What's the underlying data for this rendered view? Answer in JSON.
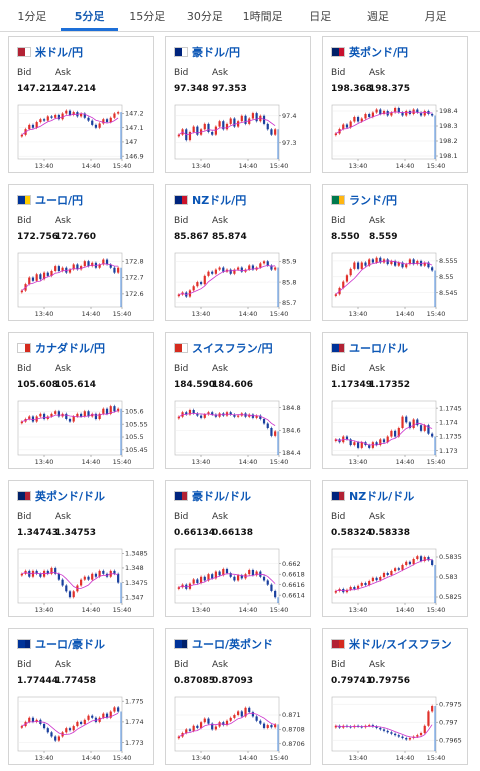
{
  "tabs": [
    {
      "label": "1分足",
      "active": false
    },
    {
      "label": "5分足",
      "active": true
    },
    {
      "label": "15分足",
      "active": false
    },
    {
      "label": "30分足",
      "active": false
    },
    {
      "label": "1時間足",
      "active": false
    },
    {
      "label": "日足",
      "active": false
    },
    {
      "label": "週足",
      "active": false
    },
    {
      "label": "月足",
      "active": false
    }
  ],
  "labels": {
    "bid": "Bid",
    "ask": "Ask"
  },
  "colors": {
    "up": "#e0302a",
    "down": "#1a3f9e",
    "ma": "#cc33cc",
    "accent": "#1d6fd8"
  },
  "cards": [
    {
      "pair": "米ドル/円",
      "bid": "147.212",
      "ask": "147.214",
      "flag": [
        "#b22234",
        "#ffffff"
      ],
      "chart_data": {
        "type": "candlestick",
        "x_ticks": [
          "13:40",
          "14:40",
          "15:40"
        ],
        "y_ticks": [
          "147.2",
          "147.1",
          "147",
          "146.9"
        ],
        "ylim": [
          146.88,
          147.26
        ],
        "series": [
          147.05,
          147.09,
          147.12,
          147.1,
          147.14,
          147.16,
          147.15,
          147.18,
          147.17,
          147.19,
          147.16,
          147.2,
          147.22,
          147.19,
          147.21,
          147.18,
          147.2,
          147.17,
          147.15,
          147.12,
          147.1,
          147.13,
          147.16,
          147.14,
          147.17,
          147.2,
          147.21
        ]
      }
    },
    {
      "pair": "豪ドル/円",
      "bid": "97.348",
      "ask": "97.353",
      "flag": [
        "#00247d",
        "#ffffff"
      ],
      "chart_data": {
        "type": "candlestick",
        "x_ticks": [
          "13:40",
          "14:40",
          "15:40"
        ],
        "y_ticks": [
          "97.4",
          "97.3"
        ],
        "ylim": [
          97.24,
          97.44
        ],
        "series": [
          97.33,
          97.35,
          97.31,
          97.34,
          97.36,
          97.33,
          97.35,
          97.37,
          97.34,
          97.33,
          97.36,
          97.38,
          97.35,
          97.37,
          97.39,
          97.36,
          97.38,
          97.4,
          97.37,
          97.39,
          97.41,
          97.38,
          97.4,
          97.37,
          97.35,
          97.33,
          97.35
        ]
      }
    },
    {
      "pair": "英ポンド/円",
      "bid": "198.368",
      "ask": "198.375",
      "flag": [
        "#012169",
        "#c8102e"
      ],
      "chart_data": {
        "type": "candlestick",
        "x_ticks": [
          "13:40",
          "14:40",
          "15:40"
        ],
        "y_ticks": [
          "198.4",
          "198.3",
          "198.2",
          "198.1"
        ],
        "ylim": [
          198.08,
          198.44
        ],
        "series": [
          198.25,
          198.28,
          198.31,
          198.29,
          198.33,
          198.36,
          198.33,
          198.35,
          198.38,
          198.36,
          198.39,
          198.41,
          198.38,
          198.4,
          198.37,
          198.39,
          198.42,
          198.39,
          198.37,
          198.4,
          198.38,
          198.41,
          198.39,
          198.37,
          198.4,
          198.38,
          198.37
        ]
      }
    },
    {
      "pair": "ユーロ/円",
      "bid": "172.756",
      "ask": "172.760",
      "flag": [
        "#003399",
        "#ffcc00"
      ],
      "chart_data": {
        "type": "candlestick",
        "x_ticks": [
          "13:40",
          "14:40",
          "15:40"
        ],
        "y_ticks": [
          "172.8",
          "172.7",
          "172.6"
        ],
        "ylim": [
          172.52,
          172.85
        ],
        "series": [
          172.62,
          172.66,
          172.7,
          172.68,
          172.72,
          172.69,
          172.73,
          172.71,
          172.74,
          172.77,
          172.74,
          172.76,
          172.73,
          172.75,
          172.78,
          172.75,
          172.77,
          172.8,
          172.77,
          172.79,
          172.76,
          172.78,
          172.81,
          172.78,
          172.76,
          172.73,
          172.76
        ]
      }
    },
    {
      "pair": "NZドル/円",
      "bid": "85.867",
      "ask": "85.874",
      "flag": [
        "#00247d",
        "#cc142b"
      ],
      "chart_data": {
        "type": "candlestick",
        "x_ticks": [
          "13:40",
          "14:40",
          "15:40"
        ],
        "y_ticks": [
          "85.9",
          "85.8",
          "85.7"
        ],
        "ylim": [
          85.68,
          85.94
        ],
        "series": [
          85.74,
          85.75,
          85.73,
          85.76,
          85.78,
          85.8,
          85.79,
          85.83,
          85.85,
          85.84,
          85.86,
          85.87,
          85.85,
          85.86,
          85.84,
          85.86,
          85.87,
          85.85,
          85.86,
          85.88,
          85.86,
          85.87,
          85.89,
          85.9,
          85.88,
          85.86,
          85.87
        ]
      }
    },
    {
      "pair": "ランド/円",
      "bid": "8.550",
      "ask": "8.559",
      "flag": [
        "#007a4d",
        "#ffb612"
      ],
      "chart_data": {
        "type": "candlestick",
        "x_ticks": [
          "13:40",
          "14:40",
          "15:40"
        ],
        "y_ticks": [
          "8.555",
          "8.55",
          "8.545"
        ],
        "ylim": [
          8.5405,
          8.5575
        ],
        "series": [
          8.5445,
          8.5465,
          8.5485,
          8.5505,
          8.5525,
          8.5545,
          8.5525,
          8.5545,
          8.5535,
          8.5555,
          8.5545,
          8.556,
          8.5545,
          8.5555,
          8.554,
          8.555,
          8.5535,
          8.5545,
          8.553,
          8.554,
          8.5555,
          8.554,
          8.555,
          8.5535,
          8.5545,
          8.553,
          8.552
        ]
      }
    },
    {
      "pair": "カナダドル/円",
      "bid": "105.608",
      "ask": "105.614",
      "flag": [
        "#ffffff",
        "#d52b1e"
      ],
      "chart_data": {
        "type": "candlestick",
        "x_ticks": [
          "13:40",
          "14:40",
          "15:40"
        ],
        "y_ticks": [
          "105.6",
          "105.55",
          "105.5",
          "105.45"
        ],
        "ylim": [
          105.43,
          105.64
        ],
        "series": [
          105.56,
          105.57,
          105.58,
          105.56,
          105.58,
          105.59,
          105.57,
          105.58,
          105.59,
          105.6,
          105.58,
          105.59,
          105.57,
          105.56,
          105.58,
          105.59,
          105.58,
          105.6,
          105.58,
          105.59,
          105.57,
          105.59,
          105.61,
          105.59,
          105.62,
          105.6,
          105.61
        ]
      }
    },
    {
      "pair": "スイスフラン/円",
      "bid": "184.590",
      "ask": "184.606",
      "flag": [
        "#d52b1e",
        "#ffffff"
      ],
      "chart_data": {
        "type": "candlestick",
        "x_ticks": [
          "13:40",
          "14:40",
          "15:40"
        ],
        "y_ticks": [
          "184.8",
          "184.6",
          "184.4"
        ],
        "ylim": [
          184.38,
          184.86
        ],
        "series": [
          184.72,
          184.76,
          184.74,
          184.78,
          184.75,
          184.73,
          184.71,
          184.74,
          184.76,
          184.74,
          184.72,
          184.75,
          184.73,
          184.76,
          184.74,
          184.72,
          184.73,
          184.75,
          184.72,
          184.74,
          184.71,
          184.73,
          184.7,
          184.66,
          184.62,
          184.55,
          184.59
        ]
      }
    },
    {
      "pair": "ユーロ/ドル",
      "bid": "1.17349",
      "ask": "1.17352",
      "flag": [
        "#003399",
        "#b22234"
      ],
      "chart_data": {
        "type": "candlestick",
        "x_ticks": [
          "13:40",
          "14:40",
          "15:40"
        ],
        "y_ticks": [
          "1.1745",
          "1.174",
          "1.1735",
          "1.173"
        ],
        "ylim": [
          1.17285,
          1.17475
        ],
        "series": [
          1.1734,
          1.1733,
          1.1735,
          1.1734,
          1.1732,
          1.1733,
          1.1731,
          1.1733,
          1.1732,
          1.1731,
          1.1733,
          1.1732,
          1.1734,
          1.1733,
          1.1735,
          1.1737,
          1.1735,
          1.1738,
          1.1742,
          1.174,
          1.1738,
          1.1741,
          1.1739,
          1.1737,
          1.1739,
          1.1736,
          1.1735
        ]
      }
    },
    {
      "pair": "英ポンド/ドル",
      "bid": "1.34743",
      "ask": "1.34753",
      "flag": [
        "#012169",
        "#b22234"
      ],
      "chart_data": {
        "type": "candlestick",
        "x_ticks": [
          "13:40",
          "14:40",
          "15:40"
        ],
        "y_ticks": [
          "1.3485",
          "1.348",
          "1.3475",
          "1.347"
        ],
        "ylim": [
          1.3468,
          1.34865
        ],
        "series": [
          1.3478,
          1.3479,
          1.3477,
          1.3479,
          1.3478,
          1.3477,
          1.3479,
          1.3478,
          1.348,
          1.3478,
          1.3476,
          1.3474,
          1.3472,
          1.347,
          1.3472,
          1.3474,
          1.3476,
          1.3477,
          1.3476,
          1.3478,
          1.3477,
          1.3479,
          1.3478,
          1.3477,
          1.3479,
          1.3478,
          1.3475
        ]
      }
    },
    {
      "pair": "豪ドル/ドル",
      "bid": "0.66134",
      "ask": "0.66138",
      "flag": [
        "#00247d",
        "#b22234"
      ],
      "chart_data": {
        "type": "candlestick",
        "x_ticks": [
          "13:40",
          "14:40",
          "15:40"
        ],
        "y_ticks": [
          "0.662",
          "0.6618",
          "0.6616",
          "0.6614"
        ],
        "ylim": [
          0.66125,
          0.66228
        ],
        "series": [
          0.66155,
          0.6616,
          0.66152,
          0.66162,
          0.6617,
          0.66163,
          0.66175,
          0.66168,
          0.6618,
          0.66172,
          0.66185,
          0.66178,
          0.6619,
          0.66182,
          0.66175,
          0.66168,
          0.66178,
          0.66172,
          0.6618,
          0.66188,
          0.66178,
          0.66185,
          0.66175,
          0.66168,
          0.6616,
          0.66148,
          0.66136
        ]
      }
    },
    {
      "pair": "NZドル/ドル",
      "bid": "0.58324",
      "ask": "0.58338",
      "flag": [
        "#00247d",
        "#b22234"
      ],
      "chart_data": {
        "type": "candlestick",
        "x_ticks": [
          "13:40",
          "14:40",
          "15:40"
        ],
        "y_ticks": [
          "0.5835",
          "0.583",
          "0.5825"
        ],
        "ylim": [
          0.58235,
          0.5837
        ],
        "series": [
          0.58265,
          0.5827,
          0.58262,
          0.58268,
          0.58275,
          0.5827,
          0.58278,
          0.58285,
          0.5828,
          0.5829,
          0.58298,
          0.58292,
          0.583,
          0.5831,
          0.58305,
          0.58315,
          0.58322,
          0.58318,
          0.5833,
          0.58338,
          0.58332,
          0.58345,
          0.58352,
          0.5834,
          0.5835,
          0.58342,
          0.5833
        ]
      }
    },
    {
      "pair": "ユーロ/豪ドル",
      "bid": "1.77444",
      "ask": "1.77458",
      "flag": [
        "#003399",
        "#00247d"
      ],
      "chart_data": {
        "type": "candlestick",
        "x_ticks": [
          "13:40",
          "14:40",
          "15:40"
        ],
        "y_ticks": [
          "1.775",
          "1.774",
          "1.773"
        ],
        "ylim": [
          1.7726,
          1.7752
        ],
        "series": [
          1.7738,
          1.774,
          1.7742,
          1.774,
          1.7741,
          1.7739,
          1.7737,
          1.7735,
          1.7733,
          1.7731,
          1.7733,
          1.7735,
          1.7737,
          1.7736,
          1.7738,
          1.774,
          1.7739,
          1.7741,
          1.7743,
          1.7742,
          1.774,
          1.7742,
          1.7744,
          1.7742,
          1.7745,
          1.7747,
          1.7745
        ]
      }
    },
    {
      "pair": "ユーロ/英ポンド",
      "bid": "0.87085",
      "ask": "0.87093",
      "flag": [
        "#003399",
        "#012169"
      ],
      "chart_data": {
        "type": "candlestick",
        "x_ticks": [
          "13:40",
          "14:40",
          "15:40"
        ],
        "y_ticks": [
          "0.871",
          "0.8708",
          "0.8706"
        ],
        "ylim": [
          0.8705,
          0.87125
        ],
        "series": [
          0.8707,
          0.87075,
          0.8708,
          0.87078,
          0.87085,
          0.87082,
          0.8709,
          0.87095,
          0.87088,
          0.8708,
          0.87084,
          0.8709,
          0.87086,
          0.87092,
          0.87096,
          0.871,
          0.87105,
          0.87098,
          0.8711,
          0.87104,
          0.87098,
          0.87092,
          0.87088,
          0.87082,
          0.87086,
          0.87083,
          0.87087
        ]
      }
    },
    {
      "pair": "米ドル/スイスフラン",
      "bid": "0.79741",
      "ask": "0.79756",
      "flag": [
        "#b22234",
        "#d52b1e"
      ],
      "chart_data": {
        "type": "candlestick",
        "x_ticks": [
          "13:40",
          "14:40",
          "15:40"
        ],
        "y_ticks": [
          "0.7975",
          "0.797",
          "0.7965"
        ],
        "ylim": [
          0.7962,
          0.7977
        ],
        "series": [
          0.7969,
          0.79685,
          0.7969,
          0.79688,
          0.79686,
          0.7969,
          0.79688,
          0.79686,
          0.7969,
          0.79692,
          0.79688,
          0.79684,
          0.7968,
          0.79676,
          0.79672,
          0.79668,
          0.79664,
          0.7966,
          0.79656,
          0.79652,
          0.79656,
          0.7966,
          0.79664,
          0.7967,
          0.7969,
          0.7973,
          0.79745
        ]
      }
    }
  ]
}
